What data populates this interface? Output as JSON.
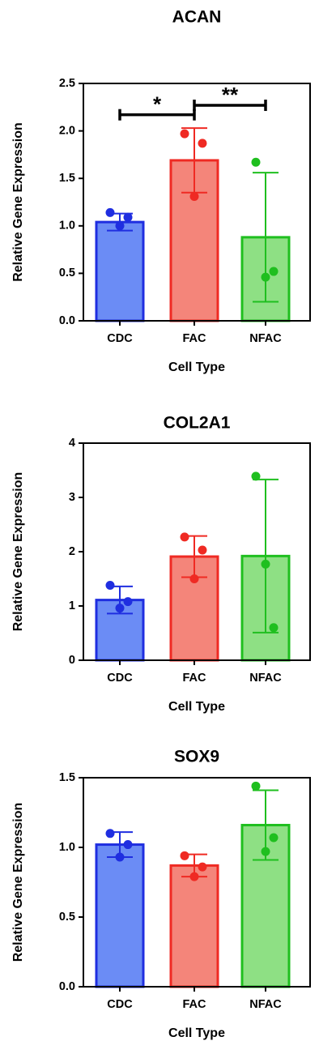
{
  "chart_data": [
    {
      "type": "bar",
      "title": "ACAN",
      "xlabel": "Cell Type",
      "ylabel": "Relative Gene Expression",
      "categories": [
        "CDC",
        "FAC",
        "NFAC"
      ],
      "values": [
        1.04,
        1.69,
        0.88
      ],
      "errors": [
        0.09,
        0.34,
        0.68
      ],
      "points": [
        [
          1.14,
          1.0,
          1.09
        ],
        [
          1.97,
          1.31,
          1.87
        ],
        [
          1.67,
          0.46,
          0.52
        ]
      ],
      "ylim": [
        0,
        2.5
      ],
      "yticks": [
        "0.0",
        "0.5",
        "1.0",
        "1.5",
        "2.0",
        "2.5"
      ],
      "significance": [
        {
          "from": "CDC",
          "to": "FAC",
          "label": "*",
          "y": 2.17
        },
        {
          "from": "FAC",
          "to": "NFAC",
          "label": "**",
          "y": 2.27
        }
      ]
    },
    {
      "type": "bar",
      "title": "COL2A1",
      "xlabel": "Cell Type",
      "ylabel": "Relative Gene Expression",
      "categories": [
        "CDC",
        "FAC",
        "NFAC"
      ],
      "values": [
        1.11,
        1.91,
        1.92
      ],
      "errors": [
        0.25,
        0.38,
        1.41
      ],
      "points": [
        [
          1.38,
          0.96,
          1.08
        ],
        [
          2.27,
          1.5,
          2.03
        ],
        [
          3.39,
          1.77,
          0.6
        ]
      ],
      "ylim": [
        0,
        4
      ],
      "yticks": [
        "0",
        "1",
        "2",
        "3",
        "4"
      ],
      "significance": []
    },
    {
      "type": "bar",
      "title": "SOX9",
      "xlabel": "Cell Type",
      "ylabel": "Relative Gene Expression",
      "categories": [
        "CDC",
        "FAC",
        "NFAC"
      ],
      "values": [
        1.02,
        0.87,
        1.16
      ],
      "errors": [
        0.09,
        0.08,
        0.25
      ],
      "points": [
        [
          1.1,
          0.93,
          1.02
        ],
        [
          0.94,
          0.79,
          0.86
        ],
        [
          1.44,
          0.97,
          1.07
        ]
      ],
      "ylim": [
        0,
        1.5
      ],
      "yticks": [
        "0.0",
        "0.5",
        "1.0",
        "1.5"
      ],
      "significance": []
    }
  ],
  "colors": {
    "CDC": {
      "fill": "#6b8cf5",
      "stroke": "#1f2ee0"
    },
    "FAC": {
      "fill": "#f4857a",
      "stroke": "#ef2a23"
    },
    "NFAC": {
      "fill": "#8ee084",
      "stroke": "#1fbf1f"
    }
  }
}
